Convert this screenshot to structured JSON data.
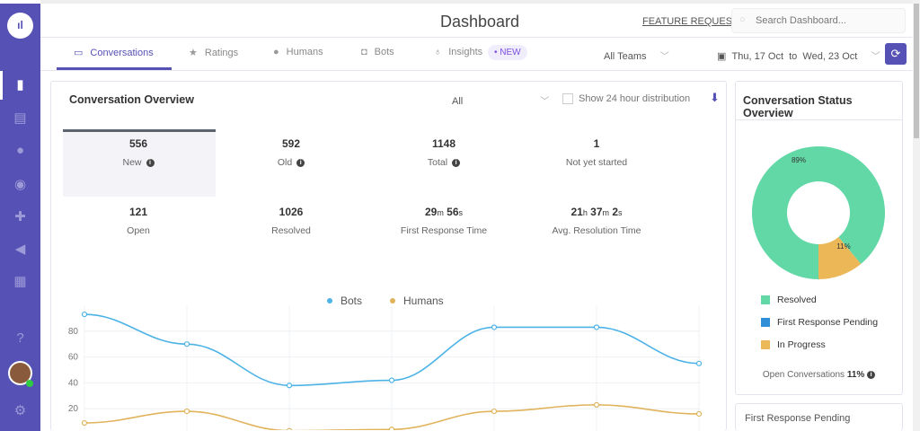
{
  "header": {
    "title": "Dashboard",
    "feature_request": "FEATURE REQUEST",
    "search_placeholder": "Search Dashboard..."
  },
  "tabs": [
    {
      "label": "Conversations",
      "icon": "chat-icon"
    },
    {
      "label": "Ratings",
      "icon": "star-icon"
    },
    {
      "label": "Humans",
      "icon": "person-icon"
    },
    {
      "label": "Bots",
      "icon": "robot-icon"
    },
    {
      "label": "Insights",
      "icon": "bulb-icon",
      "badge": "NEW"
    }
  ],
  "filters": {
    "team": "All Teams",
    "date_range": "Thu, 17 Oct  to  Wed, 23 Oct"
  },
  "overview": {
    "title": "Conversation Overview",
    "filter": "All",
    "distribution_label": "Show 24 hour distribution",
    "distribution_checked": false,
    "stats": [
      {
        "value": "556",
        "label": "New",
        "info": true
      },
      {
        "value": "592",
        "label": "Old",
        "info": true
      },
      {
        "value": "1148",
        "label": "Total",
        "info": true
      },
      {
        "value": "1",
        "label": "Not yet started"
      },
      {
        "value": "121",
        "label": "Open"
      },
      {
        "value": "1026",
        "label": "Resolved"
      },
      {
        "value_parts": [
          "29",
          "m",
          " 56",
          "s"
        ],
        "label": "First Response Time"
      },
      {
        "value_parts": [
          "21",
          "h",
          " 37",
          "m",
          " 2",
          "s"
        ],
        "label": "Avg. Resolution Time"
      }
    ]
  },
  "chart_data": [
    {
      "type": "line",
      "legend": "top",
      "grid": true,
      "yticks": [
        20,
        40,
        60,
        80
      ],
      "series": [
        {
          "name": "Bots",
          "color": "#4db3e6",
          "values": [
            93,
            70,
            38,
            42,
            83,
            83,
            55
          ]
        },
        {
          "name": "Humans",
          "color": "#e0b35c",
          "values": [
            9,
            18,
            3,
            4,
            18,
            23,
            16
          ]
        }
      ]
    },
    {
      "type": "pie",
      "title": "Conversation Status Overview",
      "slices": [
        {
          "name": "Resolved",
          "value": 89,
          "label": "89%",
          "color": "#62d8a6"
        },
        {
          "name": "First Response Pending",
          "value": 0,
          "color": "#2f8fd8"
        },
        {
          "name": "In Progress",
          "value": 11,
          "label": "11%",
          "color": "#ebb757"
        }
      ]
    }
  ],
  "status": {
    "open_label": "Open Conversations",
    "open_value": "11%",
    "next_card": "First Response Pending"
  }
}
